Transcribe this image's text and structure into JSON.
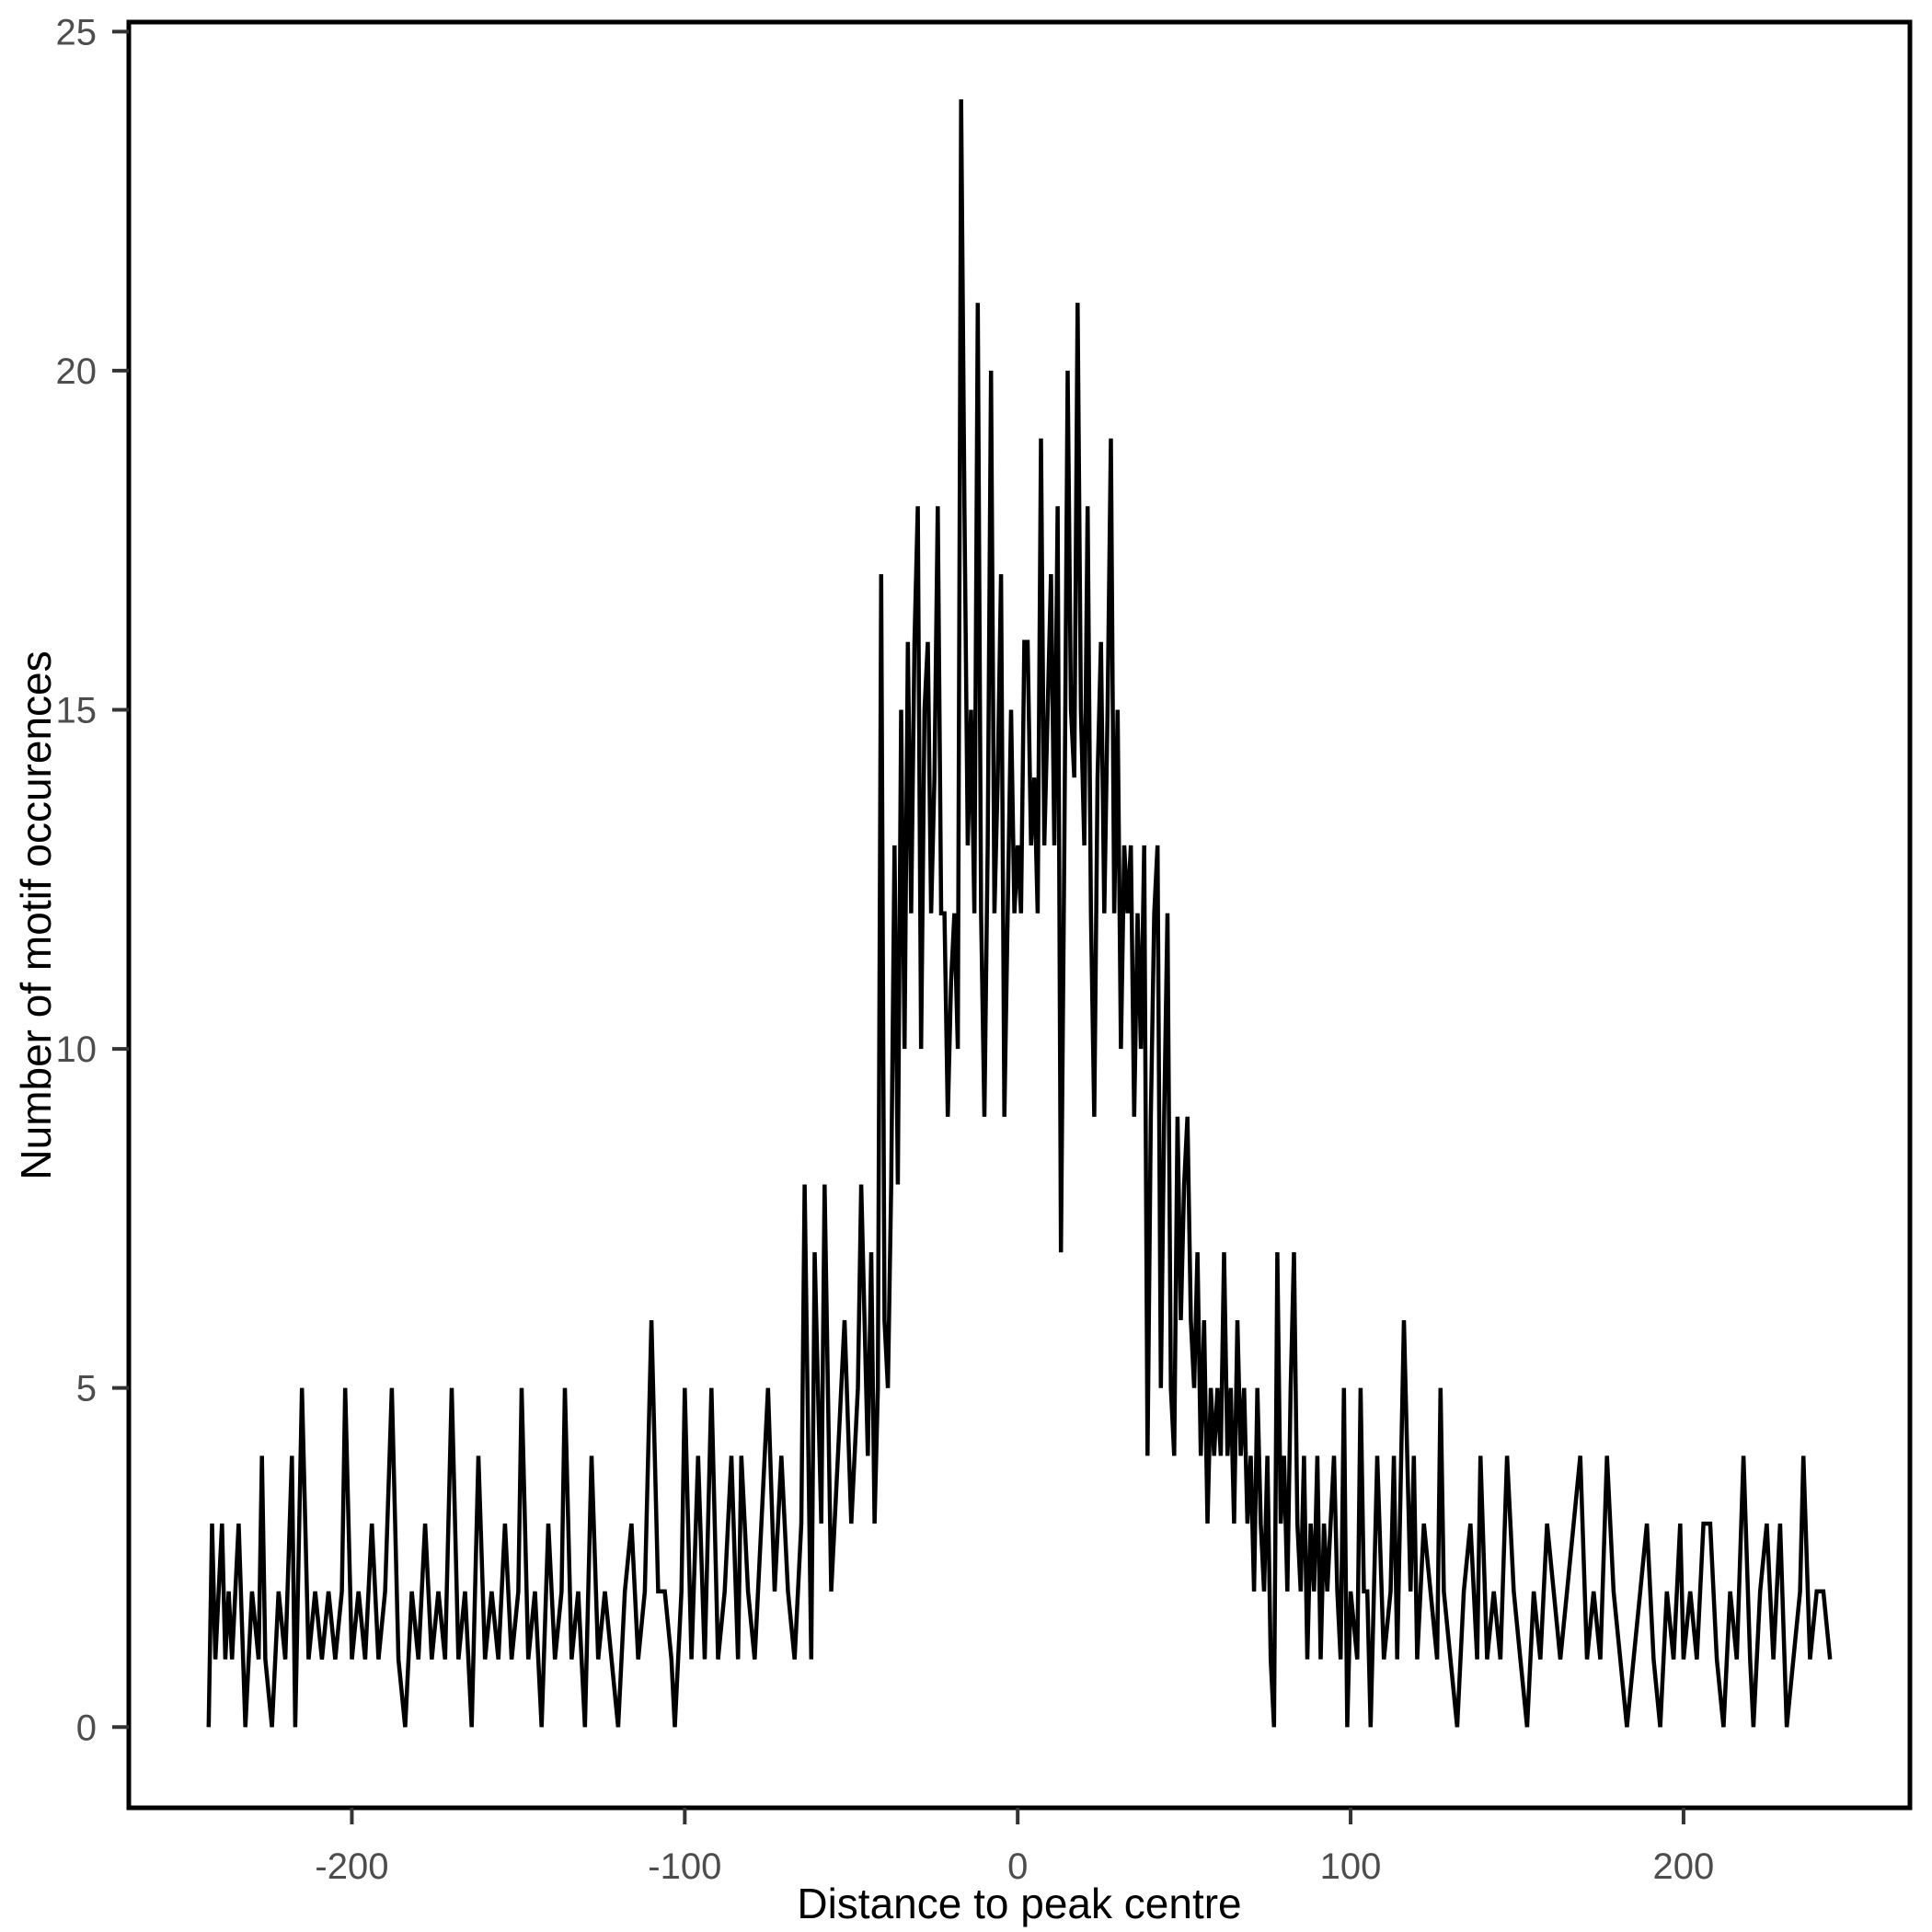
{
  "figure": {
    "background": "#ffffff",
    "panel_border_color": "#000000",
    "tick_mark_color": "#333333",
    "tick_label_color": "#4d4d4d",
    "axis_title_color": "#000000",
    "line_color": "#000000"
  },
  "chart_data": {
    "type": "line",
    "title": "",
    "xlabel": "Distance to peak centre",
    "ylabel": "Number of motif occurences",
    "legend": false,
    "grid": false,
    "xlim": [
      -267,
      268
    ],
    "ylim": [
      -1.19,
      25.14
    ],
    "x_ticks": [
      -200,
      -100,
      0,
      100,
      200
    ],
    "x_tick_labels": [
      "-200",
      "-100",
      "0",
      "100",
      "200"
    ],
    "y_ticks": [
      0,
      5,
      10,
      15,
      20,
      25
    ],
    "y_tick_labels": [
      "0",
      "5",
      "10",
      "15",
      "20",
      "25"
    ],
    "x": [
      -243,
      -242,
      -241,
      -240,
      -239,
      -238,
      -237,
      -236,
      -234,
      -232,
      -230,
      -228,
      -227,
      -226,
      -224,
      -222,
      -220,
      -218,
      -217,
      -215,
      -213,
      -211,
      -209,
      -207,
      -205,
      -203,
      -202,
      -200,
      -198,
      -196,
      -194,
      -192,
      -190,
      -188,
      -186,
      -184,
      -182,
      -180,
      -178,
      -176,
      -174,
      -172,
      -170,
      -168,
      -166,
      -164,
      -162,
      -160,
      -158,
      -156,
      -154,
      -152,
      -150,
      -149,
      -147,
      -145,
      -143,
      -141,
      -139,
      -137,
      -136,
      -134,
      -132,
      -130,
      -128,
      -126,
      -124,
      -122,
      -120,
      -118,
      -116,
      -114,
      -112,
      -110,
      -108,
      -106,
      -104,
      -103,
      -101,
      -100,
      -98,
      -96,
      -94,
      -92,
      -90,
      -88,
      -86,
      -84,
      -83,
      -81,
      -79,
      -77,
      -75,
      -73,
      -71,
      -69,
      -67,
      -65,
      -64,
      -62,
      -61,
      -59,
      -58,
      -56,
      -54,
      -52,
      -50,
      -48,
      -47,
      -45,
      -44,
      -43,
      -42,
      -41,
      -40,
      -39,
      -38,
      -37,
      -36,
      -35,
      -34,
      -33,
      -32,
      -31,
      -30,
      -29,
      -28,
      -27,
      -26,
      -25,
      -24,
      -23,
      -22,
      -21,
      -20,
      -19,
      -18,
      -17,
      -16,
      -15,
      -14,
      -13,
      -12,
      -11,
      -10,
      -9,
      -8,
      -7,
      -6,
      -5,
      -4,
      -3,
      -2,
      -1,
      0,
      1,
      2,
      3,
      4,
      5,
      6,
      7,
      8,
      9,
      10,
      11,
      12,
      13,
      14,
      15,
      16,
      17,
      18,
      19,
      20,
      21,
      22,
      23,
      24,
      25,
      26,
      27,
      28,
      29,
      30,
      31,
      32,
      33,
      34,
      35,
      36,
      37,
      38,
      39,
      40,
      41,
      42,
      43,
      44,
      45,
      46,
      47,
      48,
      49,
      50,
      51,
      52,
      53,
      54,
      55,
      56,
      57,
      58,
      59,
      60,
      61,
      62,
      63,
      64,
      65,
      66,
      67,
      68,
      69,
      70,
      71,
      72,
      73,
      74,
      75,
      76,
      77,
      78,
      79,
      80,
      81,
      82,
      83,
      84,
      85,
      86,
      87,
      88,
      89,
      90,
      91,
      92,
      93,
      94,
      95,
      96,
      97,
      98,
      99,
      100,
      102,
      103,
      104,
      105,
      106,
      108,
      110,
      112,
      113,
      114,
      116,
      118,
      119,
      120,
      122,
      124,
      126,
      127,
      128,
      130,
      132,
      134,
      136,
      138,
      139,
      141,
      143,
      145,
      147,
      149,
      151,
      153,
      155,
      157,
      159,
      161,
      163,
      165,
      167,
      169,
      171,
      173,
      175,
      177,
      179,
      181,
      183,
      185,
      187,
      189,
      191,
      193,
      195,
      197,
      199,
      200,
      202,
      204,
      206,
      208,
      210,
      212,
      214,
      216,
      218,
      220,
      221,
      223,
      225,
      227,
      229,
      231,
      233,
      235,
      236,
      238,
      240,
      242,
      244
    ],
    "y": [
      0,
      3,
      1,
      2,
      3,
      1,
      2,
      1,
      3,
      0,
      2,
      1,
      4,
      1,
      0,
      2,
      1,
      4,
      0,
      5,
      1,
      2,
      1,
      2,
      1,
      2,
      5,
      1,
      2,
      1,
      3,
      1,
      2,
      5,
      1,
      0,
      2,
      1,
      3,
      1,
      2,
      1,
      5,
      1,
      2,
      0,
      4,
      1,
      2,
      1,
      3,
      1,
      2,
      5,
      1,
      2,
      0,
      3,
      1,
      2,
      5,
      1,
      2,
      0,
      4,
      1,
      2,
      1,
      0,
      2,
      3,
      1,
      2,
      6,
      2,
      2,
      1,
      0,
      2,
      5,
      1,
      4,
      1,
      5,
      1,
      2,
      4,
      1,
      4,
      2,
      1,
      3,
      5,
      2,
      4,
      2,
      1,
      3,
      8,
      1,
      7,
      3,
      8,
      2,
      4,
      6,
      3,
      5,
      8,
      4,
      7,
      3,
      5,
      17,
      6,
      5,
      8,
      13,
      8,
      15,
      10,
      16,
      12,
      16,
      18,
      10,
      15,
      16,
      12,
      14,
      18,
      12,
      12,
      9,
      11,
      12,
      10,
      24,
      18,
      13,
      15,
      12,
      21,
      12,
      9,
      13,
      20,
      12,
      14,
      17,
      9,
      12,
      15,
      12,
      13,
      12,
      16,
      16,
      13,
      14,
      12,
      19,
      13,
      15,
      17,
      13,
      18,
      7,
      13,
      20,
      15,
      14,
      21,
      15,
      13,
      18,
      12,
      9,
      14,
      16,
      12,
      15,
      19,
      12,
      15,
      10,
      13,
      12,
      13,
      9,
      12,
      10,
      13,
      4,
      9,
      12,
      13,
      5,
      9,
      12,
      5,
      4,
      9,
      6,
      8,
      9,
      6,
      5,
      7,
      4,
      6,
      3,
      5,
      4,
      5,
      4,
      7,
      4,
      5,
      3,
      6,
      4,
      5,
      3,
      4,
      2,
      5,
      3,
      2,
      4,
      1,
      0,
      7,
      3,
      4,
      2,
      5,
      7,
      3,
      2,
      4,
      1,
      3,
      2,
      4,
      1,
      3,
      2,
      3,
      4,
      2,
      1,
      5,
      0,
      2,
      1,
      5,
      2,
      2,
      0,
      4,
      1,
      2,
      4,
      1,
      6,
      2,
      4,
      1,
      3,
      2,
      1,
      5,
      2,
      1,
      0,
      2,
      3,
      1,
      4,
      1,
      2,
      1,
      4,
      2,
      1,
      0,
      2,
      1,
      3,
      2,
      1,
      2,
      3,
      4,
      1,
      2,
      1,
      4,
      2,
      1,
      0,
      1,
      2,
      3,
      1,
      0,
      2,
      1,
      3,
      1,
      2,
      1,
      3,
      3,
      1,
      0,
      2,
      1,
      4,
      1,
      0,
      2,
      3,
      1,
      3,
      0,
      1,
      2,
      4,
      1,
      2,
      2,
      1
    ]
  }
}
